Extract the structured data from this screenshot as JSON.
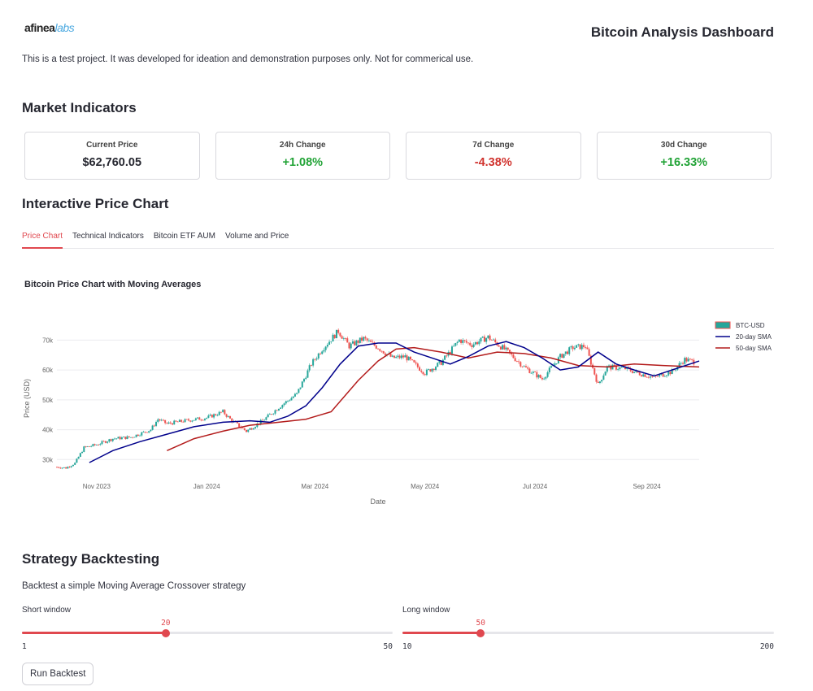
{
  "header": {
    "logo_part1": "afinea",
    "logo_part2": "labs",
    "title": "Bitcoin Analysis Dashboard",
    "disclaimer": "This is a test project. It was developed for ideation and demonstration purposes only. Not for commerical use."
  },
  "market": {
    "title": "Market Indicators",
    "metrics": [
      {
        "label": "Current Price",
        "value": "$62,760.05",
        "color": "#262730"
      },
      {
        "label": "24h Change",
        "value": "+1.08%",
        "color": "#21a336"
      },
      {
        "label": "7d Change",
        "value": "-4.38%",
        "color": "#d0322d"
      },
      {
        "label": "30d Change",
        "value": "+16.33%",
        "color": "#21a336"
      }
    ]
  },
  "chart_section": {
    "title": "Interactive Price Chart",
    "tabs": [
      "Price Chart",
      "Technical Indicators",
      "Bitcoin ETF AUM",
      "Volume and Price"
    ],
    "active_tab": 0
  },
  "chart_data": {
    "type": "line",
    "title": "Bitcoin Price Chart with Moving Averages",
    "xlabel": "Date",
    "ylabel": "Price (USD)",
    "x_range": [
      "2023-10-10",
      "2024-09-30"
    ],
    "ylim": [
      26000,
      75000
    ],
    "y_ticks": [
      30000,
      40000,
      50000,
      60000,
      70000
    ],
    "y_tick_labels": [
      "30k",
      "40k",
      "50k",
      "60k",
      "70k"
    ],
    "x_ticks": [
      "2023-11-01",
      "2024-01-01",
      "2024-03-01",
      "2024-05-01",
      "2024-07-01",
      "2024-09-01"
    ],
    "x_tick_labels": [
      "Nov 2023",
      "Jan 2024",
      "Mar 2024",
      "May 2024",
      "Jul 2024",
      "Sep 2024"
    ],
    "grid": true,
    "legend_position": "top-right",
    "colors": {
      "up": "#26a69a",
      "down": "#ef5350",
      "sma20": "#00008b",
      "sma50": "#b31b1b"
    },
    "series": [
      {
        "name": "BTC-USD",
        "kind": "candlestick",
        "x": [
          "2023-10-10",
          "2023-10-15",
          "2023-10-20",
          "2023-10-25",
          "2023-11-01",
          "2023-11-10",
          "2023-11-20",
          "2023-12-01",
          "2023-12-05",
          "2023-12-10",
          "2023-12-20",
          "2024-01-01",
          "2024-01-10",
          "2024-01-15",
          "2024-01-23",
          "2024-02-01",
          "2024-02-10",
          "2024-02-20",
          "2024-02-28",
          "2024-03-05",
          "2024-03-14",
          "2024-03-20",
          "2024-03-28",
          "2024-04-05",
          "2024-04-13",
          "2024-04-20",
          "2024-05-01",
          "2024-05-10",
          "2024-05-20",
          "2024-05-27",
          "2024-06-05",
          "2024-06-15",
          "2024-06-25",
          "2024-07-05",
          "2024-07-15",
          "2024-07-22",
          "2024-07-29",
          "2024-08-05",
          "2024-08-10",
          "2024-08-20",
          "2024-08-27",
          "2024-09-05",
          "2024-09-15",
          "2024-09-22",
          "2024-09-27"
        ],
        "close": [
          27500,
          27200,
          28800,
          34000,
          35000,
          37000,
          37500,
          40000,
          43500,
          42000,
          43000,
          44000,
          46000,
          43000,
          39500,
          43000,
          47500,
          52000,
          62000,
          67000,
          73000,
          68000,
          70500,
          67500,
          64000,
          64500,
          59000,
          62500,
          70000,
          68500,
          71000,
          66500,
          61000,
          57000,
          64500,
          67500,
          68000,
          55000,
          61000,
          60500,
          59000,
          57500,
          59500,
          63500,
          62760
        ]
      },
      {
        "name": "20-day SMA",
        "x": [
          "2023-10-28",
          "2023-11-10",
          "2023-11-25",
          "2023-12-10",
          "2023-12-25",
          "2024-01-10",
          "2024-01-25",
          "2024-02-05",
          "2024-02-15",
          "2024-02-25",
          "2024-03-05",
          "2024-03-15",
          "2024-03-25",
          "2024-04-05",
          "2024-04-15",
          "2024-04-25",
          "2024-05-05",
          "2024-05-15",
          "2024-05-25",
          "2024-06-05",
          "2024-06-15",
          "2024-06-25",
          "2024-07-05",
          "2024-07-15",
          "2024-07-25",
          "2024-08-05",
          "2024-08-15",
          "2024-08-25",
          "2024-09-05",
          "2024-09-15",
          "2024-09-30"
        ],
        "values": [
          29000,
          33000,
          36000,
          38500,
          41000,
          42500,
          43000,
          42500,
          44500,
          48000,
          54000,
          62000,
          68000,
          69000,
          69000,
          66000,
          64000,
          62000,
          64500,
          68000,
          69500,
          67500,
          64000,
          60000,
          61000,
          66000,
          62000,
          60000,
          58000,
          60000,
          63000
        ]
      },
      {
        "name": "50-day SMA",
        "x": [
          "2023-12-10",
          "2023-12-25",
          "2024-01-10",
          "2024-01-25",
          "2024-02-10",
          "2024-02-25",
          "2024-03-10",
          "2024-03-25",
          "2024-04-05",
          "2024-04-15",
          "2024-04-25",
          "2024-05-10",
          "2024-05-25",
          "2024-06-10",
          "2024-06-25",
          "2024-07-10",
          "2024-07-25",
          "2024-08-10",
          "2024-08-25",
          "2024-09-10",
          "2024-09-30"
        ],
        "values": [
          33000,
          37000,
          39500,
          41500,
          42500,
          43500,
          46000,
          56500,
          63000,
          67000,
          67500,
          66000,
          64000,
          66000,
          65500,
          64000,
          61500,
          61000,
          62000,
          61500,
          61000
        ]
      }
    ]
  },
  "backtest": {
    "title": "Strategy Backtesting",
    "description": "Backtest a simple Moving Average Crossover strategy",
    "short_window": {
      "label": "Short window",
      "value": 20,
      "min": 1,
      "max": 50
    },
    "long_window": {
      "label": "Long window",
      "value": 50,
      "min": 10,
      "max": 200
    },
    "run_label": "Run Backtest"
  }
}
